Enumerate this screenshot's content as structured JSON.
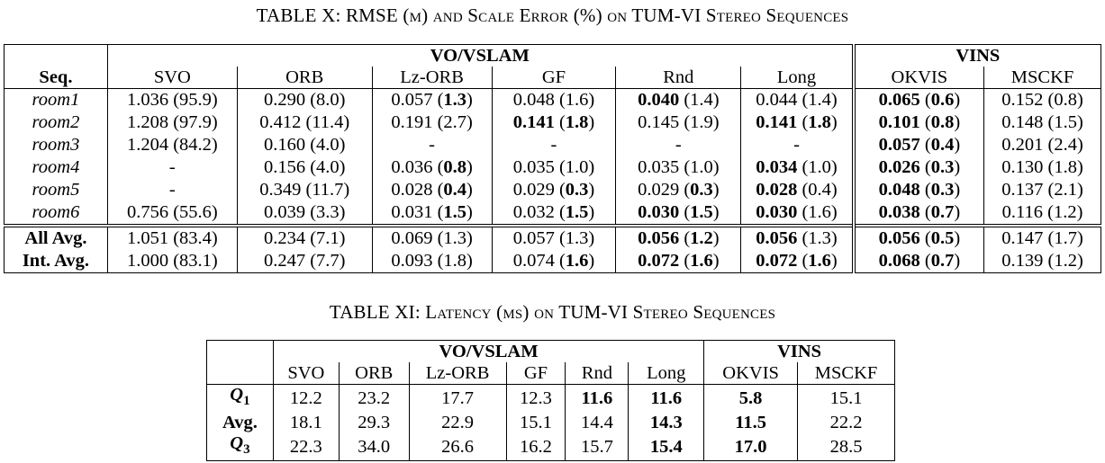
{
  "table1": {
    "caption": "TABLE X: RMSE (m) and Scale Error (%) on TUM-VI Stereo Sequences",
    "group_vo": "VO/VSLAM",
    "group_vins": "VINS",
    "seq_header": "Seq.",
    "columns": [
      "SVO",
      "ORB",
      "Lz-ORB",
      "GF",
      "Rnd",
      "Long",
      "OKVIS",
      "MSCKF"
    ],
    "rows": [
      {
        "label": "room1",
        "cells": [
          {
            "v": "1.036",
            "s": "95.9",
            "vb": false,
            "sb": false
          },
          {
            "v": "0.290",
            "s": "8.0",
            "vb": false,
            "sb": false
          },
          {
            "v": "0.057",
            "s": "1.3",
            "vb": false,
            "sb": true
          },
          {
            "v": "0.048",
            "s": "1.6",
            "vb": false,
            "sb": false
          },
          {
            "v": "0.040",
            "s": "1.4",
            "vb": true,
            "sb": false
          },
          {
            "v": "0.044",
            "s": "1.4",
            "vb": false,
            "sb": false
          },
          {
            "v": "0.065",
            "s": "0.6",
            "vb": true,
            "sb": true
          },
          {
            "v": "0.152",
            "s": "0.8",
            "vb": false,
            "sb": false
          }
        ]
      },
      {
        "label": "room2",
        "cells": [
          {
            "v": "1.208",
            "s": "97.9",
            "vb": false,
            "sb": false
          },
          {
            "v": "0.412",
            "s": "11.4",
            "vb": false,
            "sb": false
          },
          {
            "v": "0.191",
            "s": "2.7",
            "vb": false,
            "sb": false
          },
          {
            "v": "0.141",
            "s": "1.8",
            "vb": true,
            "sb": true
          },
          {
            "v": "0.145",
            "s": "1.9",
            "vb": false,
            "sb": false
          },
          {
            "v": "0.141",
            "s": "1.8",
            "vb": true,
            "sb": true
          },
          {
            "v": "0.101",
            "s": "0.8",
            "vb": true,
            "sb": true
          },
          {
            "v": "0.148",
            "s": "1.5",
            "vb": false,
            "sb": false
          }
        ]
      },
      {
        "label": "room3",
        "cells": [
          {
            "v": "1.204",
            "s": "84.2",
            "vb": false,
            "sb": false
          },
          {
            "v": "0.160",
            "s": "4.0",
            "vb": false,
            "sb": false
          },
          {
            "dash": "-"
          },
          {
            "dash": "-"
          },
          {
            "dash": "-"
          },
          {
            "dash": "-"
          },
          {
            "v": "0.057",
            "s": "0.4",
            "vb": true,
            "sb": true
          },
          {
            "v": "0.201",
            "s": "2.4",
            "vb": false,
            "sb": false
          }
        ]
      },
      {
        "label": "room4",
        "cells": [
          {
            "dash": "-"
          },
          {
            "v": "0.156",
            "s": "4.0",
            "vb": false,
            "sb": false
          },
          {
            "v": "0.036",
            "s": "0.8",
            "vb": false,
            "sb": true
          },
          {
            "v": "0.035",
            "s": "1.0",
            "vb": false,
            "sb": false
          },
          {
            "v": "0.035",
            "s": "1.0",
            "vb": false,
            "sb": false
          },
          {
            "v": "0.034",
            "s": "1.0",
            "vb": true,
            "sb": false
          },
          {
            "v": "0.026",
            "s": "0.3",
            "vb": true,
            "sb": true
          },
          {
            "v": "0.130",
            "s": "1.8",
            "vb": false,
            "sb": false
          }
        ]
      },
      {
        "label": "room5",
        "cells": [
          {
            "dash": "-"
          },
          {
            "v": "0.349",
            "s": "11.7",
            "vb": false,
            "sb": false
          },
          {
            "v": "0.028",
            "s": "0.4",
            "vb": false,
            "sb": true
          },
          {
            "v": "0.029",
            "s": "0.3",
            "vb": false,
            "sb": true
          },
          {
            "v": "0.029",
            "s": "0.3",
            "vb": false,
            "sb": true
          },
          {
            "v": "0.028",
            "s": "0.4",
            "vb": true,
            "sb": false
          },
          {
            "v": "0.048",
            "s": "0.3",
            "vb": true,
            "sb": true
          },
          {
            "v": "0.137",
            "s": "2.1",
            "vb": false,
            "sb": false
          }
        ]
      },
      {
        "label": "room6",
        "cells": [
          {
            "v": "0.756",
            "s": "55.6",
            "vb": false,
            "sb": false
          },
          {
            "v": "0.039",
            "s": "3.3",
            "vb": false,
            "sb": false
          },
          {
            "v": "0.031",
            "s": "1.5",
            "vb": false,
            "sb": true
          },
          {
            "v": "0.032",
            "s": "1.5",
            "vb": false,
            "sb": true
          },
          {
            "v": "0.030",
            "s": "1.5",
            "vb": true,
            "sb": true
          },
          {
            "v": "0.030",
            "s": "1.6",
            "vb": true,
            "sb": false
          },
          {
            "v": "0.038",
            "s": "0.7",
            "vb": true,
            "sb": true
          },
          {
            "v": "0.116",
            "s": "1.2",
            "vb": false,
            "sb": false
          }
        ]
      }
    ],
    "summary_rows": [
      {
        "label": "All Avg.",
        "cells": [
          {
            "v": "1.051",
            "s": "83.4",
            "vb": false,
            "sb": false
          },
          {
            "v": "0.234",
            "s": "7.1",
            "vb": false,
            "sb": false
          },
          {
            "v": "0.069",
            "s": "1.3",
            "vb": false,
            "sb": false
          },
          {
            "v": "0.057",
            "s": "1.3",
            "vb": false,
            "sb": false
          },
          {
            "v": "0.056",
            "s": "1.2",
            "vb": true,
            "sb": true
          },
          {
            "v": "0.056",
            "s": "1.3",
            "vb": true,
            "sb": false
          },
          {
            "v": "0.056",
            "s": "0.5",
            "vb": true,
            "sb": true
          },
          {
            "v": "0.147",
            "s": "1.7",
            "vb": false,
            "sb": false
          }
        ]
      },
      {
        "label": "Int. Avg.",
        "cells": [
          {
            "v": "1.000",
            "s": "83.1",
            "vb": false,
            "sb": false
          },
          {
            "v": "0.247",
            "s": "7.7",
            "vb": false,
            "sb": false
          },
          {
            "v": "0.093",
            "s": "1.8",
            "vb": false,
            "sb": false
          },
          {
            "v": "0.074",
            "s": "1.6",
            "vb": false,
            "sb": true
          },
          {
            "v": "0.072",
            "s": "1.6",
            "vb": true,
            "sb": true
          },
          {
            "v": "0.072",
            "s": "1.6",
            "vb": true,
            "sb": true
          },
          {
            "v": "0.068",
            "s": "0.7",
            "vb": true,
            "sb": true
          },
          {
            "v": "0.139",
            "s": "1.2",
            "vb": false,
            "sb": false
          }
        ]
      }
    ]
  },
  "table2": {
    "caption": "TABLE XI: Latency (ms) on TUM-VI Stereo Sequences",
    "group_vo": "VO/VSLAM",
    "group_vins": "VINS",
    "columns": [
      "SVO",
      "ORB",
      "Lz-ORB",
      "GF",
      "Rnd",
      "Long",
      "OKVIS",
      "MSCKF"
    ],
    "rows": [
      {
        "label": "Q",
        "sub": "1",
        "cells": [
          {
            "v": "12.2",
            "b": false
          },
          {
            "v": "23.2",
            "b": false
          },
          {
            "v": "17.7",
            "b": false
          },
          {
            "v": "12.3",
            "b": false
          },
          {
            "v": "11.6",
            "b": true
          },
          {
            "v": "11.6",
            "b": true
          },
          {
            "v": "5.8",
            "b": true
          },
          {
            "v": "15.1",
            "b": false
          }
        ]
      },
      {
        "label": "Avg.",
        "cells": [
          {
            "v": "18.1",
            "b": false
          },
          {
            "v": "29.3",
            "b": false
          },
          {
            "v": "22.9",
            "b": false
          },
          {
            "v": "15.1",
            "b": false
          },
          {
            "v": "14.4",
            "b": false
          },
          {
            "v": "14.3",
            "b": true
          },
          {
            "v": "11.5",
            "b": true
          },
          {
            "v": "22.2",
            "b": false
          }
        ]
      },
      {
        "label": "Q",
        "sub": "3",
        "cells": [
          {
            "v": "22.3",
            "b": false
          },
          {
            "v": "34.0",
            "b": false
          },
          {
            "v": "26.6",
            "b": false
          },
          {
            "v": "16.2",
            "b": false
          },
          {
            "v": "15.7",
            "b": false
          },
          {
            "v": "15.4",
            "b": true
          },
          {
            "v": "17.0",
            "b": true
          },
          {
            "v": "28.5",
            "b": false
          }
        ]
      }
    ]
  }
}
